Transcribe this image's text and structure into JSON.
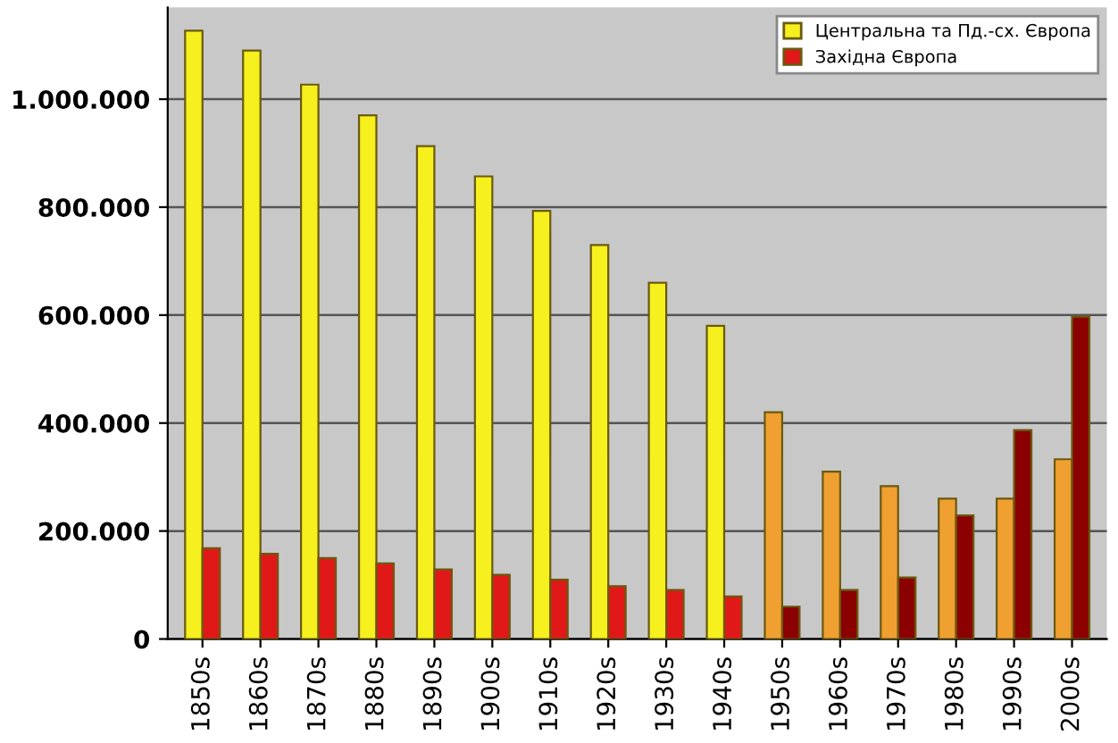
{
  "chart_data": {
    "type": "bar",
    "categories": [
      "1850s",
      "1860s",
      "1870s",
      "1880s",
      "1890s",
      "1900s",
      "1910s",
      "1920s",
      "1930s",
      "1940s",
      "1950s",
      "1960s",
      "1970s",
      "1980s",
      "1990s",
      "2000s"
    ],
    "series": [
      {
        "name": "Центральна та Пд.-сх. Європа",
        "color": "#f5f01e",
        "colors": [
          "#f5f01e",
          "#f5f01e",
          "#f5f01e",
          "#f5f01e",
          "#f5f01e",
          "#f5f01e",
          "#f5f01e",
          "#f5f01e",
          "#f5f01e",
          "#f5f01e",
          "#f0a030",
          "#f0a030",
          "#f0a030",
          "#f0a030",
          "#f0a030",
          "#f0a030"
        ],
        "values": [
          1127000,
          1090000,
          1027000,
          970000,
          913000,
          857000,
          793000,
          730000,
          660000,
          580000,
          420000,
          310000,
          283000,
          260000,
          260000,
          333000
        ]
      },
      {
        "name": "Західна Європа",
        "color": "#e01818",
        "colors": [
          "#e01818",
          "#e01818",
          "#e01818",
          "#e01818",
          "#e01818",
          "#e01818",
          "#e01818",
          "#e01818",
          "#e01818",
          "#e01818",
          "#8b0000",
          "#8b0000",
          "#8b0000",
          "#8b0000",
          "#8b0000",
          "#8b0000"
        ],
        "values": [
          168000,
          158000,
          150000,
          140000,
          129000,
          119000,
          110000,
          98000,
          91000,
          79000,
          60000,
          91000,
          114000,
          229000,
          387000,
          597000
        ]
      }
    ],
    "ylim": [
      0,
      1170000
    ],
    "yticks": [
      {
        "value": 0,
        "label": "0"
      },
      {
        "value": 200000,
        "label": "200.000"
      },
      {
        "value": 400000,
        "label": "400.000"
      },
      {
        "value": 600000,
        "label": "600.000"
      },
      {
        "value": 800000,
        "label": "800.000"
      },
      {
        "value": 1000000,
        "label": "1.000.000"
      }
    ],
    "grid": "y",
    "legend": "top right"
  }
}
